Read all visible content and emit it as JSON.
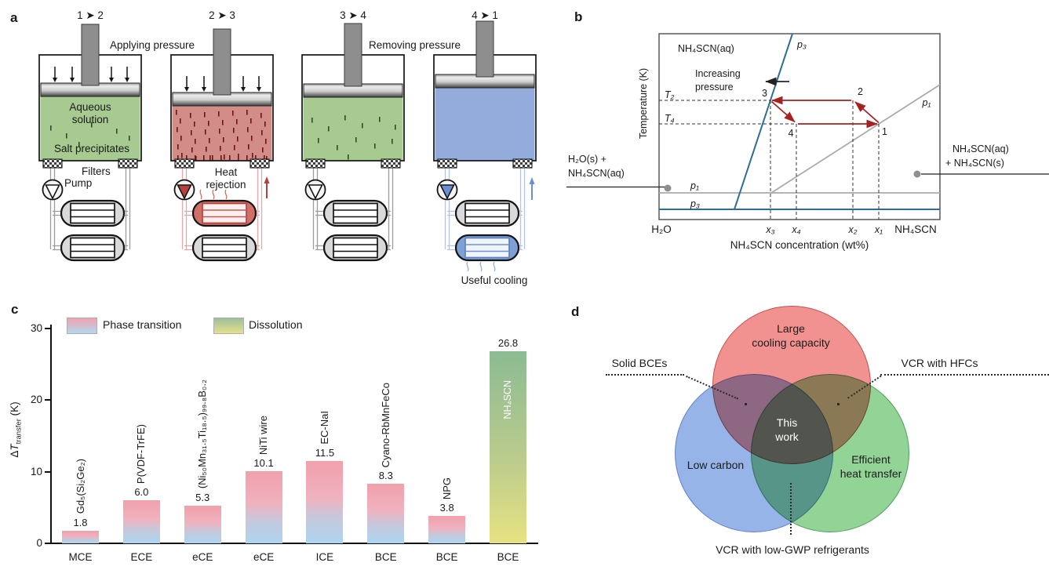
{
  "figure_title": "Barocaloric cooling cycle figure",
  "panels": {
    "a": {
      "label": "a",
      "stages": [
        "1 ➤ 2",
        "2 ➤ 3",
        "3 ➤ 4",
        "4 ➤ 1"
      ],
      "applying_pressure": "Applying pressure",
      "removing_pressure": "Removing pressure",
      "aqueous_line1": "Aqueous",
      "aqueous_line2": "solution",
      "salt_precipitates": "Salt precipitates",
      "filters": "Filters",
      "pump": "Pump",
      "heat_line1": "Heat",
      "heat_line2": "rejection",
      "useful_cooling": "Useful cooling"
    },
    "b": {
      "label": "b",
      "ylabel": "Temperature (K)",
      "xlabel": "NH₄SCN concentration (wt%)",
      "solution_label": "NH₄SCN(aq)",
      "increasing_line1": "Increasing",
      "increasing_line2": "pressure",
      "p3_top": "p₃",
      "p1_right": "p₁",
      "p1_left": "p₁",
      "p3_left": "p₃",
      "T2": "T₂",
      "T4": "T₄",
      "pt1": "1",
      "pt2": "2",
      "pt3": "3",
      "pt4": "4",
      "x_ticks": [
        "x₃",
        "x₄",
        "x₂",
        "x₁"
      ],
      "x_left": "H₂O",
      "x_right": "NH₄SCN",
      "callout_left_line1": "H₂O(s) +",
      "callout_left_line2": "NH₄SCN(aq)",
      "callout_right_line1": "NH₄SCN(aq)",
      "callout_right_line2": "+ NH₄SCN(s)"
    },
    "c": {
      "label": "c",
      "ylabel_delta": "Δ",
      "ylabel_T": "T",
      "ylabel_sub": "transfer",
      "ylabel_unit": " (K)"
    },
    "d": {
      "label": "d",
      "circle_red_line1": "Large",
      "circle_red_line2": "cooling capacity",
      "circle_blue": "Low carbon",
      "circle_green_line1": "Efficient",
      "circle_green_line2": "heat transfer",
      "center_line1": "This",
      "center_line2": "work",
      "callout_left": "Solid BCEs",
      "callout_right": "VCR with HFCs",
      "callout_bottom": "VCR with low-GWP refrigerants"
    }
  },
  "chart_data": {
    "type": "bar",
    "title": "",
    "ylabel": "ΔT_transfer (K)",
    "ylim": [
      0,
      32
    ],
    "yticks": [
      0,
      10,
      20,
      30
    ],
    "grid": false,
    "legend_position": "top-left",
    "categories": [
      "MCE",
      "ECE",
      "eCE",
      "eCE",
      "ICE",
      "BCE",
      "BCE",
      "BCE"
    ],
    "bars": [
      {
        "category": "MCE",
        "material": "Gd₅(Si₂Ge₂)",
        "value": 1.8,
        "group": "phase_transition"
      },
      {
        "category": "ECE",
        "material": "P(VDF-TrFE)",
        "value": 6.0,
        "group": "phase_transition"
      },
      {
        "category": "eCE",
        "material": "(Ni₅₀Mn₃₁.₅Ti₁₈.₅)₉₉.₈B₀.₂",
        "value": 5.3,
        "group": "phase_transition"
      },
      {
        "category": "eCE",
        "material": "NiTi wire",
        "value": 10.1,
        "group": "phase_transition"
      },
      {
        "category": "ICE",
        "material": "EC-NaI",
        "value": 11.5,
        "group": "phase_transition"
      },
      {
        "category": "BCE",
        "material": "Cyano-RbMnFeCo",
        "value": 8.3,
        "group": "phase_transition"
      },
      {
        "category": "BCE",
        "material": "NPG",
        "value": 3.8,
        "group": "phase_transition"
      },
      {
        "category": "BCE",
        "material": "NH₄SCN",
        "value": 26.8,
        "group": "dissolution",
        "label_inside": true
      }
    ],
    "legend": [
      {
        "label": "Phase transition",
        "gradient": [
          "#efa3b0",
          "#b5d8f0"
        ]
      },
      {
        "label": "Dissolution",
        "gradient": [
          "#9cbf9b",
          "#e6e18b"
        ]
      }
    ]
  },
  "colors": {
    "solution_green": "#a6ca8f",
    "solution_red": "#d28d89",
    "solution_blue": "#93acdc",
    "phase_line_blue": "#2e6e96",
    "phase_line_gray": "#ababab",
    "cycle_red": "#a32222",
    "venn_red": "#f29290",
    "venn_blue": "#96b4e8",
    "venn_green": "#92d396"
  }
}
